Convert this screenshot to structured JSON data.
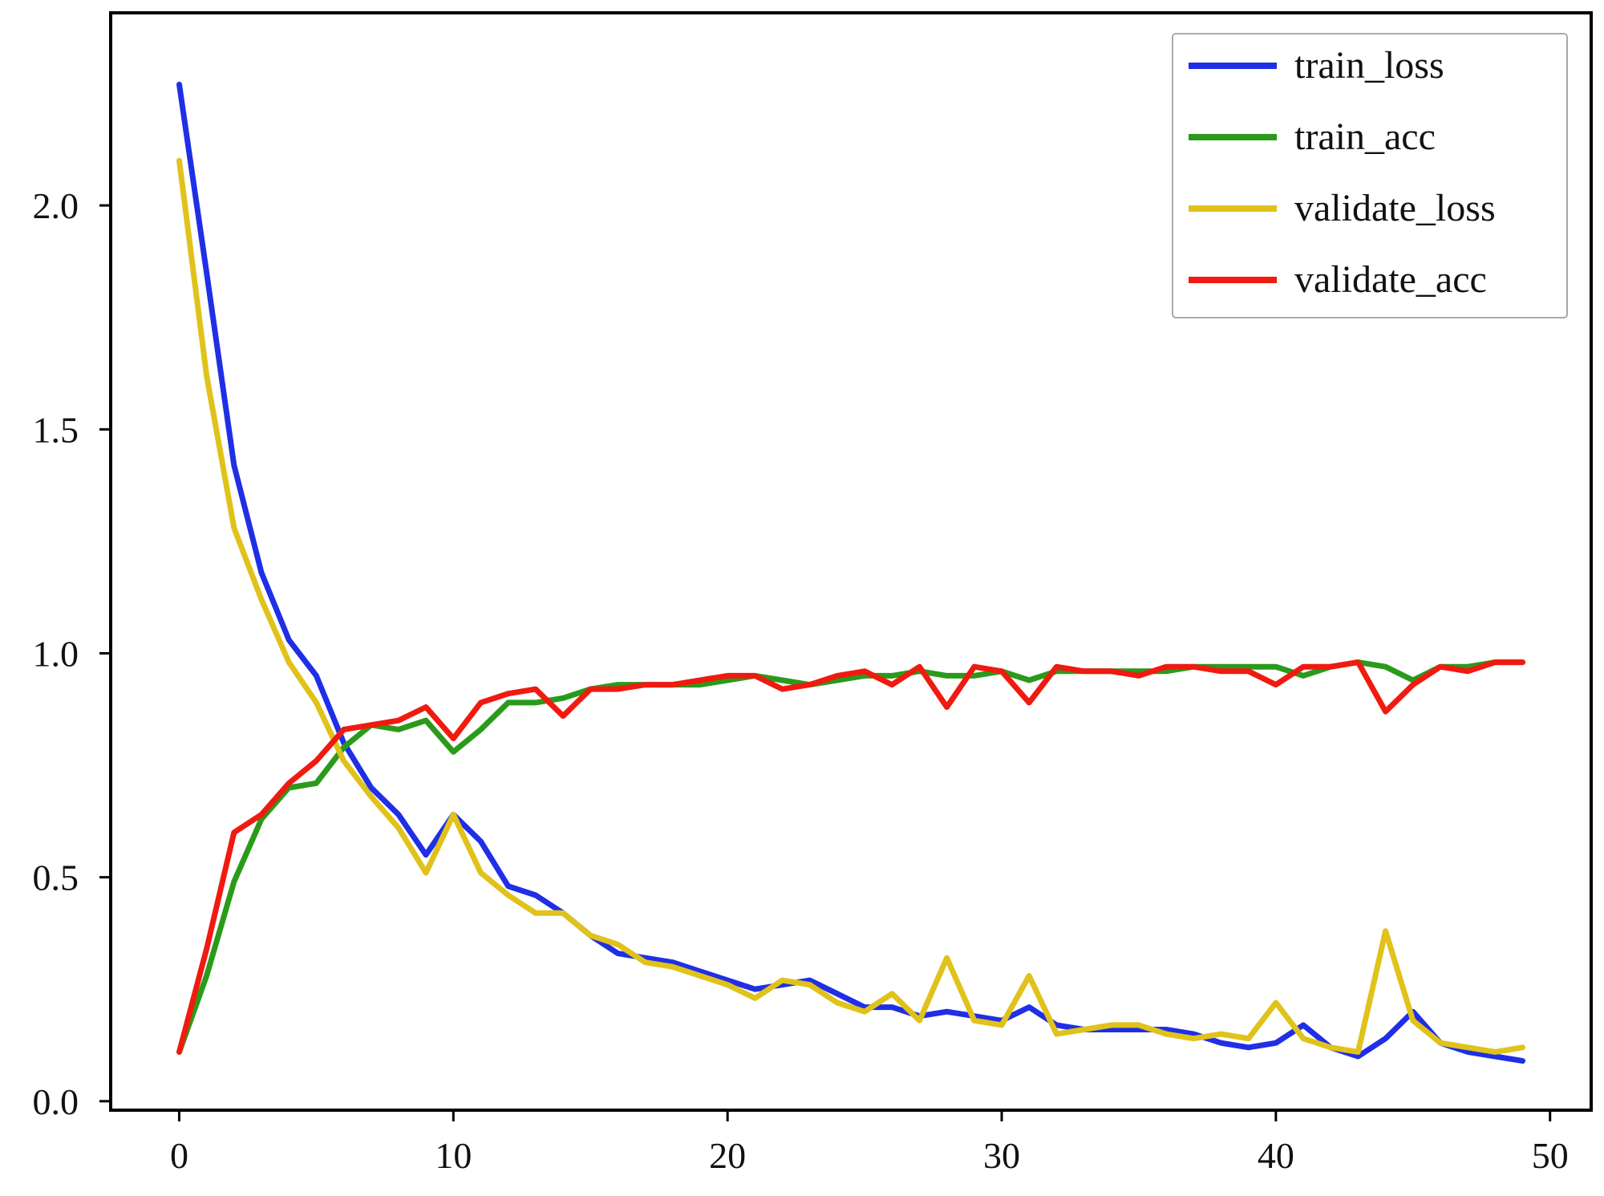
{
  "chart_data": {
    "type": "line",
    "title": "",
    "xlabel": "",
    "ylabel": "",
    "xlim": [
      -2.5,
      51.5
    ],
    "ylim": [
      -0.02,
      2.43
    ],
    "xticks": [
      0,
      10,
      20,
      30,
      40,
      50
    ],
    "xtick_labels": [
      "0",
      "10",
      "20",
      "30",
      "40",
      "50"
    ],
    "yticks": [
      0.0,
      0.5,
      1.0,
      1.5,
      2.0
    ],
    "ytick_labels": [
      "0.0",
      "0.5",
      "1.0",
      "1.5",
      "2.0"
    ],
    "grid": false,
    "legend_position": "top-right",
    "x": [
      0,
      1,
      2,
      3,
      4,
      5,
      6,
      7,
      8,
      9,
      10,
      11,
      12,
      13,
      14,
      15,
      16,
      17,
      18,
      19,
      20,
      21,
      22,
      23,
      24,
      25,
      26,
      27,
      28,
      29,
      30,
      31,
      32,
      33,
      34,
      35,
      36,
      37,
      38,
      39,
      40,
      41,
      42,
      43,
      44,
      45,
      46,
      47,
      48,
      49
    ],
    "series": [
      {
        "name": "train_loss",
        "color": "#1f2fe6",
        "values": [
          2.27,
          1.85,
          1.42,
          1.18,
          1.03,
          0.95,
          0.8,
          0.7,
          0.64,
          0.55,
          0.64,
          0.58,
          0.48,
          0.46,
          0.42,
          0.37,
          0.33,
          0.32,
          0.31,
          0.29,
          0.27,
          0.25,
          0.26,
          0.27,
          0.24,
          0.21,
          0.21,
          0.19,
          0.2,
          0.19,
          0.18,
          0.21,
          0.17,
          0.16,
          0.16,
          0.16,
          0.16,
          0.15,
          0.13,
          0.12,
          0.13,
          0.17,
          0.12,
          0.1,
          0.14,
          0.2,
          0.13,
          0.11,
          0.1,
          0.09
        ]
      },
      {
        "name": "train_acc",
        "color": "#2a9a1a",
        "values": [
          0.11,
          0.28,
          0.49,
          0.63,
          0.7,
          0.71,
          0.79,
          0.84,
          0.83,
          0.85,
          0.78,
          0.83,
          0.89,
          0.89,
          0.9,
          0.92,
          0.93,
          0.93,
          0.93,
          0.93,
          0.94,
          0.95,
          0.94,
          0.93,
          0.94,
          0.95,
          0.95,
          0.96,
          0.95,
          0.95,
          0.96,
          0.94,
          0.96,
          0.96,
          0.96,
          0.96,
          0.96,
          0.97,
          0.97,
          0.97,
          0.97,
          0.95,
          0.97,
          0.98,
          0.97,
          0.94,
          0.97,
          0.97,
          0.98,
          0.98
        ]
      },
      {
        "name": "validate_loss",
        "color": "#e0c21a",
        "values": [
          2.1,
          1.62,
          1.28,
          1.12,
          0.98,
          0.89,
          0.76,
          0.68,
          0.61,
          0.51,
          0.64,
          0.51,
          0.46,
          0.42,
          0.42,
          0.37,
          0.35,
          0.31,
          0.3,
          0.28,
          0.26,
          0.23,
          0.27,
          0.26,
          0.22,
          0.2,
          0.24,
          0.18,
          0.32,
          0.18,
          0.17,
          0.28,
          0.15,
          0.16,
          0.17,
          0.17,
          0.15,
          0.14,
          0.15,
          0.14,
          0.22,
          0.14,
          0.12,
          0.11,
          0.38,
          0.18,
          0.13,
          0.12,
          0.11,
          0.12
        ]
      },
      {
        "name": "validate_acc",
        "color": "#f01a10",
        "values": [
          0.11,
          0.34,
          0.6,
          0.64,
          0.71,
          0.76,
          0.83,
          0.84,
          0.85,
          0.88,
          0.81,
          0.89,
          0.91,
          0.92,
          0.86,
          0.92,
          0.92,
          0.93,
          0.93,
          0.94,
          0.95,
          0.95,
          0.92,
          0.93,
          0.95,
          0.96,
          0.93,
          0.97,
          0.88,
          0.97,
          0.96,
          0.89,
          0.97,
          0.96,
          0.96,
          0.95,
          0.97,
          0.97,
          0.96,
          0.96,
          0.93,
          0.97,
          0.97,
          0.98,
          0.87,
          0.93,
          0.97,
          0.96,
          0.98,
          0.98
        ]
      }
    ]
  }
}
